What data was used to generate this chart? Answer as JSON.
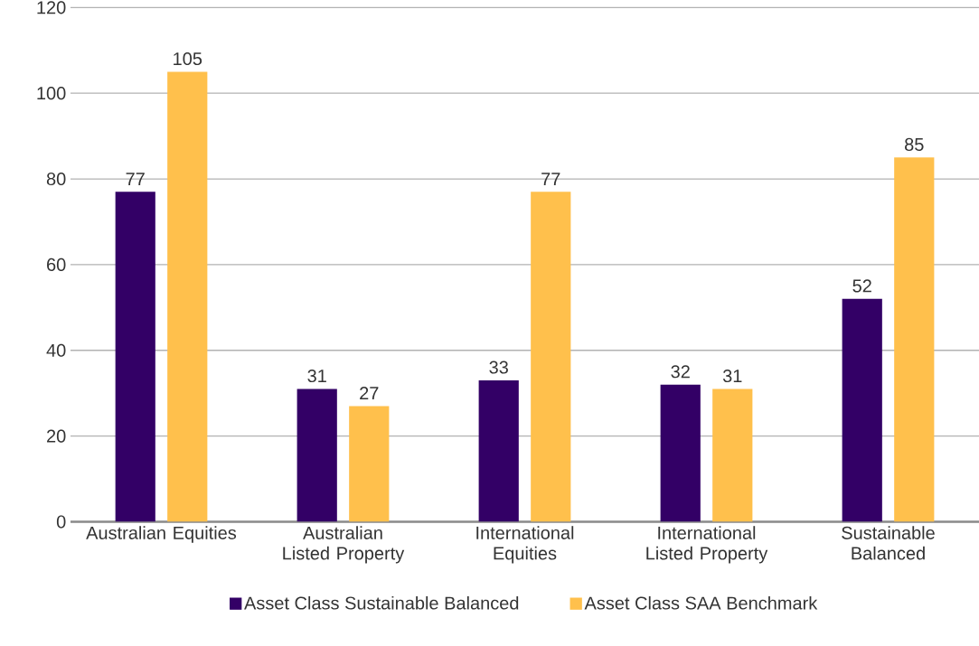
{
  "chart_data": {
    "type": "bar",
    "categories": [
      "Australian Equities",
      "Australian Listed Property",
      "International Equities",
      "International Listed Property",
      "Sustainable Balanced"
    ],
    "series": [
      {
        "name": "Asset Class Sustainable Balanced",
        "color": "#330066",
        "values": [
          77,
          31,
          33,
          32,
          52
        ]
      },
      {
        "name": "Asset Class SAA Benchmark",
        "color": "#ffc04c",
        "values": [
          105,
          27,
          77,
          31,
          85
        ]
      }
    ],
    "ylim": [
      0,
      120
    ],
    "yticks": [
      0,
      20,
      40,
      60,
      80,
      100,
      120
    ],
    "grid": "y",
    "legend": "bottom",
    "data_labels": true
  }
}
